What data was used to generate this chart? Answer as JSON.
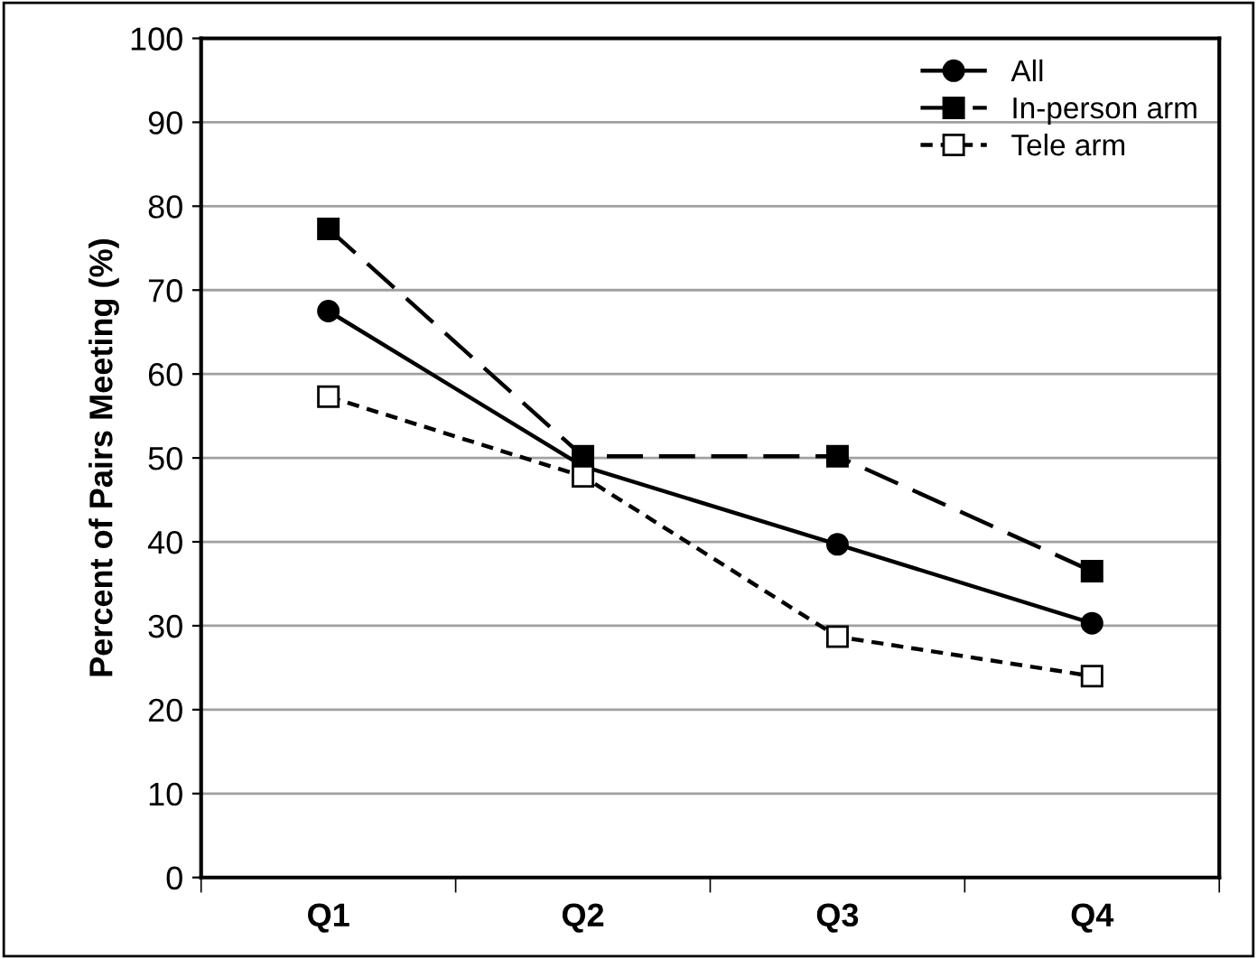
{
  "chart_data": {
    "type": "line",
    "ylabel": "Percent of Pairs Meeting (%)",
    "categories": [
      "Q1",
      "Q2",
      "Q3",
      "Q4"
    ],
    "series": [
      {
        "name": "All",
        "color": "#000000",
        "marker": "circle",
        "line_style": "solid",
        "values": [
          67.5,
          49,
          39.7,
          30.3
        ]
      },
      {
        "name": "In-person arm",
        "color": "#000000",
        "marker": "square",
        "line_style": "dashed",
        "values": [
          77.3,
          50.2,
          50.2,
          36.5
        ]
      },
      {
        "name": "Tele arm",
        "color": "#000000",
        "marker": "square",
        "line_style": "dotted",
        "values": [
          57.3,
          47.8,
          28.7,
          24
        ]
      }
    ],
    "ylim": [
      0,
      100
    ],
    "yticks": [
      0,
      10,
      20,
      30,
      40,
      50,
      60,
      70,
      80,
      90,
      100
    ],
    "grid": "y",
    "legend": "top right"
  }
}
